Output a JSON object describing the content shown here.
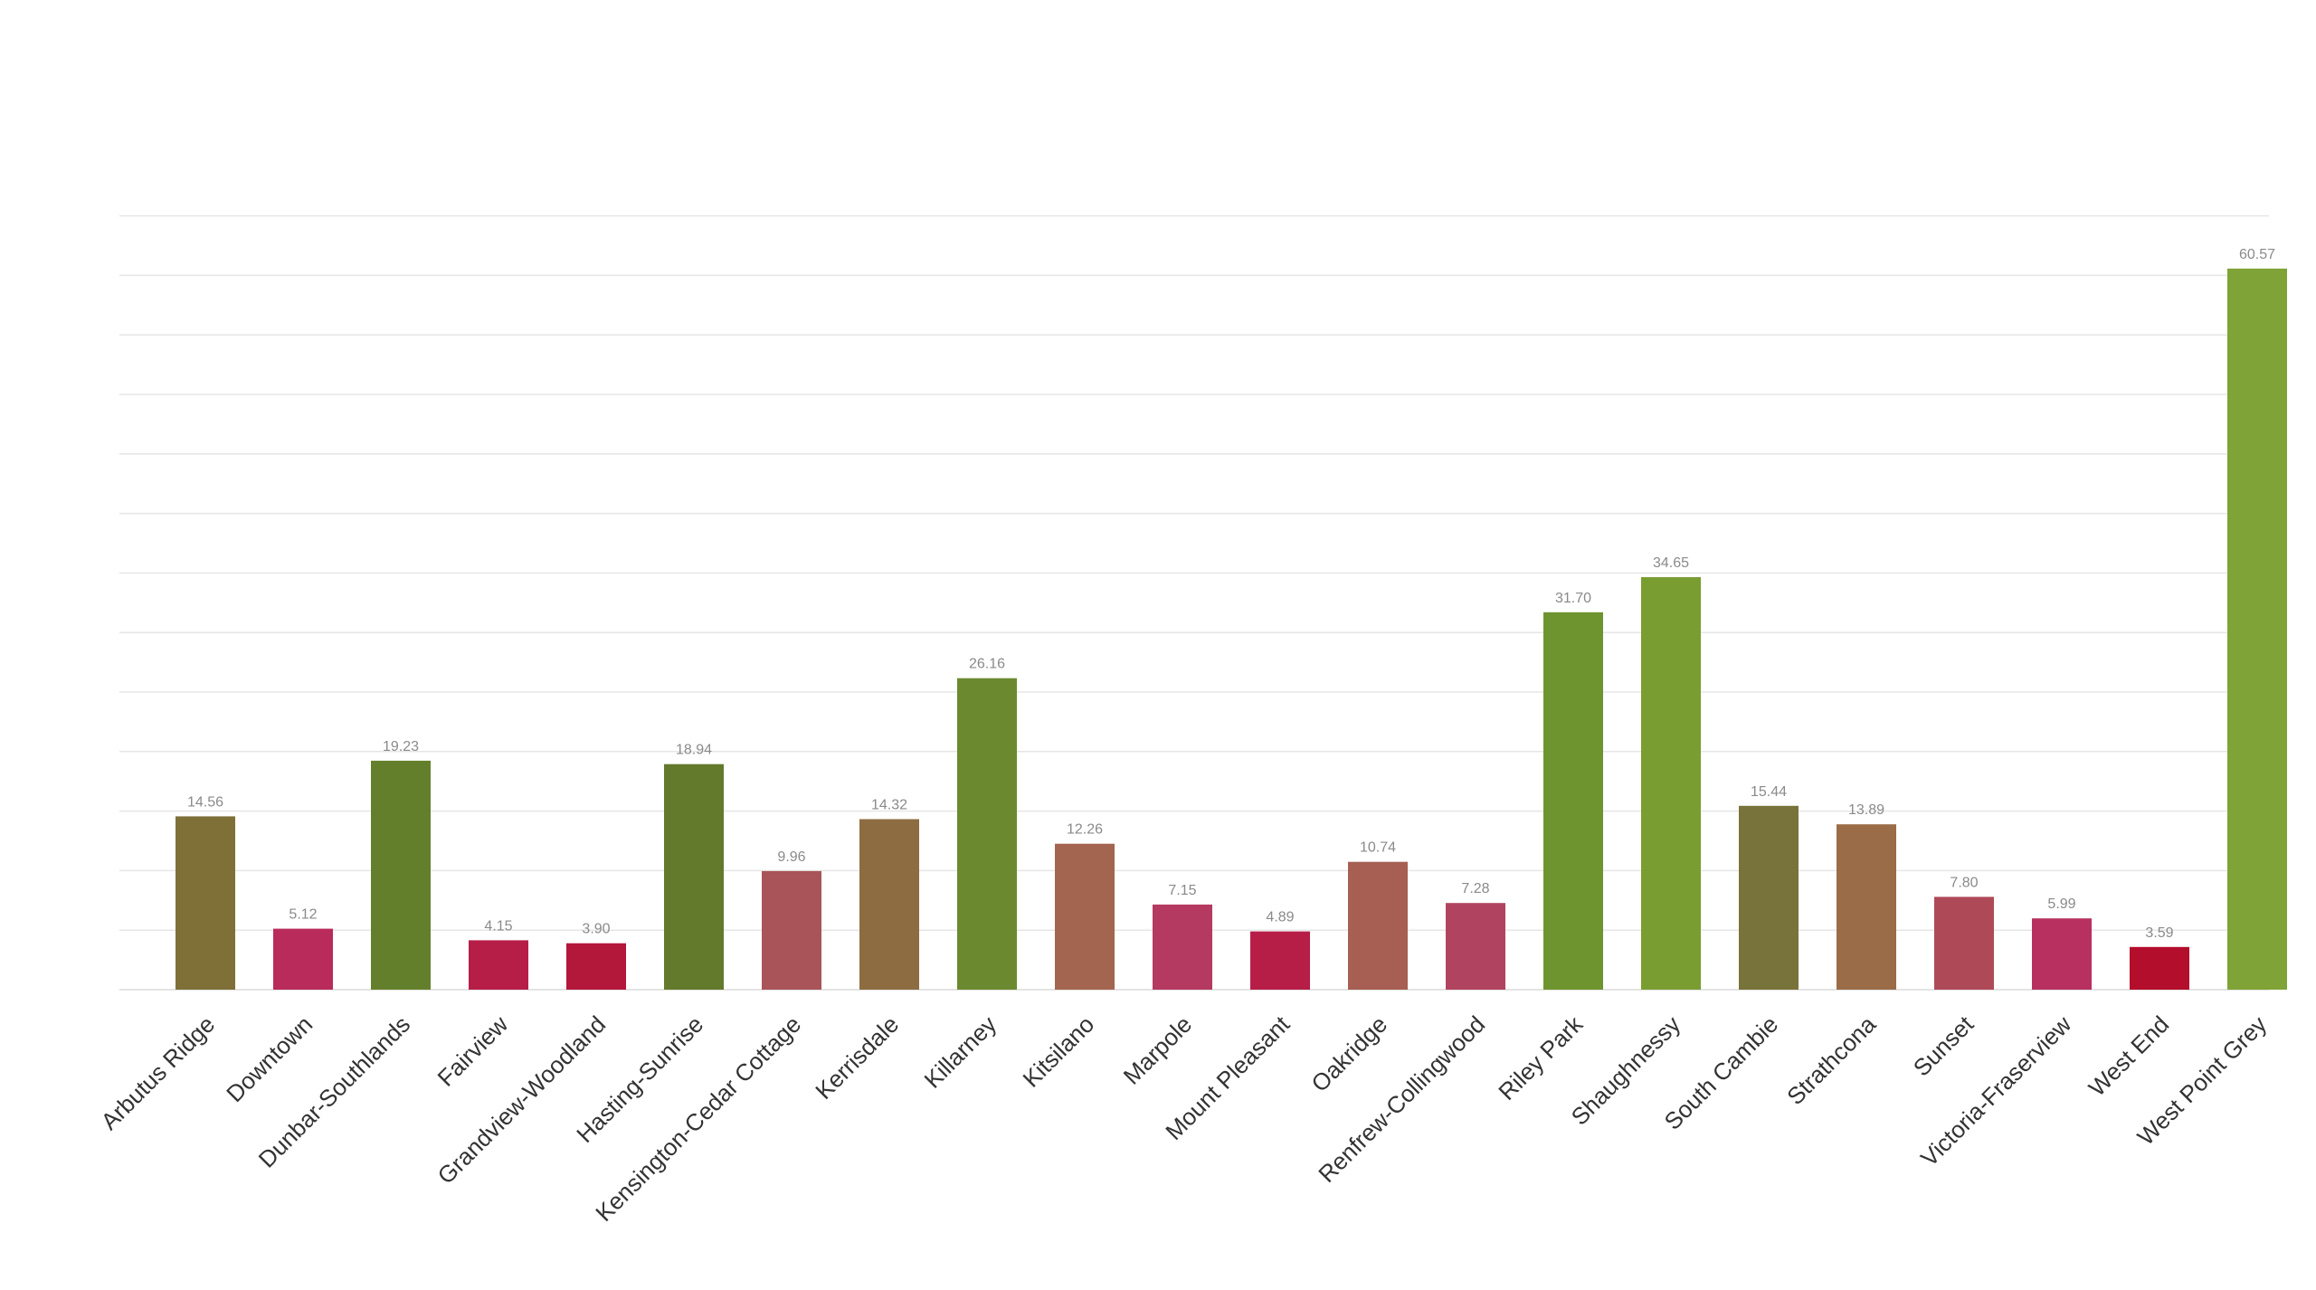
{
  "chart_data": {
    "type": "bar",
    "title": "",
    "xlabel": "",
    "ylabel": "",
    "ylim": [
      0,
      65
    ],
    "grid_step": 5,
    "grid": true,
    "legend": "none",
    "categories": [
      "Arbutus Ridge",
      "Downtown",
      "Dunbar-Southlands",
      "Fairview",
      "Grandview-Woodland",
      "Hasting-Sunrise",
      "Kensington-Cedar Cottage",
      "Kerrisdale",
      "Killarney",
      "Kitsilano",
      "Marpole",
      "Mount Pleasant",
      "Oakridge",
      "Renfrew-Collingwood",
      "Riley Park",
      "Shaughnessy",
      "South Cambie",
      "Strathcona",
      "Sunset",
      "Victoria-Fraserview",
      "West End",
      "West Point Grey"
    ],
    "values": [
      14.56,
      5.12,
      19.23,
      4.15,
      3.9,
      18.94,
      9.96,
      14.32,
      26.16,
      12.26,
      7.15,
      4.89,
      10.74,
      7.28,
      31.7,
      34.65,
      15.44,
      13.89,
      7.8,
      5.99,
      3.59,
      60.57
    ],
    "value_labels": [
      "14.56",
      "5.12",
      "19.23",
      "4.15",
      "3.90",
      "18.94",
      "9.96",
      "14.32",
      "26.16",
      "12.26",
      "7.15",
      "4.89",
      "10.74",
      "7.28",
      "31.70",
      "34.65",
      "15.44",
      "13.89",
      "7.80",
      "5.99",
      "3.59",
      "60.57"
    ],
    "colors": [
      "#7f7038",
      "#b92b5a",
      "#647f2c",
      "#b61e48",
      "#b3173a",
      "#637a2c",
      "#a95459",
      "#8c6c40",
      "#6b8a30",
      "#a46550",
      "#b53a62",
      "#b61e48",
      "#a65f52",
      "#b04460",
      "#6e9430",
      "#7a9d32",
      "#78733a",
      "#9a6c48",
      "#ae4a58",
      "#b73060",
      "#b30e2c",
      "#7fa336"
    ]
  }
}
